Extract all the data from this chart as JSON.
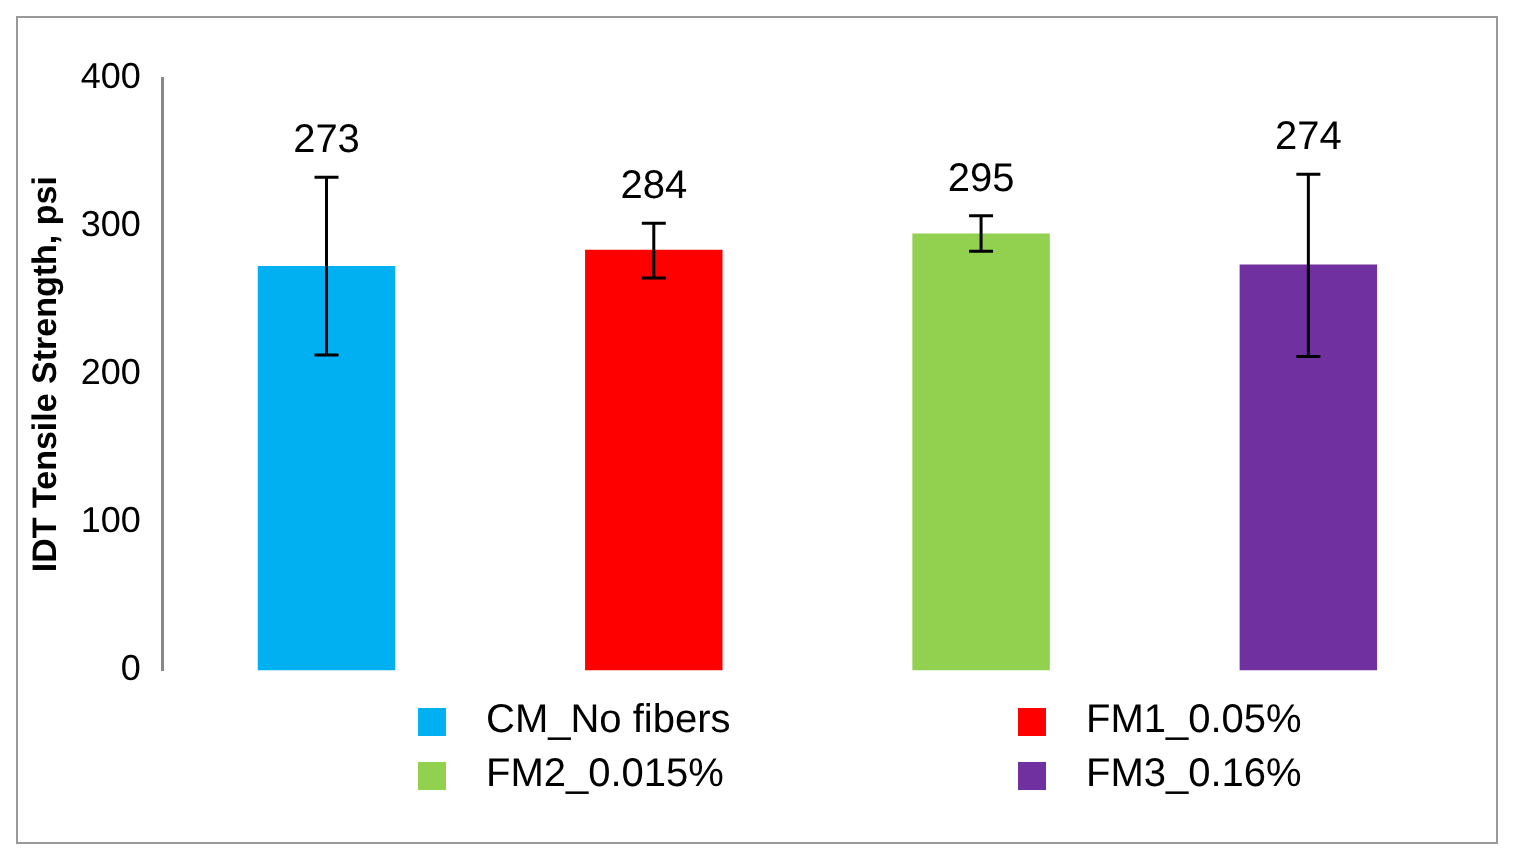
{
  "chart_data": {
    "type": "bar",
    "ylabel": "IDT Tensile Strength, psi",
    "categories": [
      null,
      null,
      null,
      null
    ],
    "stacked": true,
    "series": [
      {
        "name": "CM_No fibers",
        "color": "#00b0f0",
        "values": [
          273,
          null,
          null,
          null
        ],
        "errors": [
          [
            213,
            333
          ],
          null,
          null,
          null
        ]
      },
      {
        "name": "FM1_0.05%",
        "color": "#ff0000",
        "values": [
          null,
          284,
          null,
          null
        ],
        "errors": [
          null,
          [
            265,
            302
          ],
          null,
          null
        ]
      },
      {
        "name": "FM2_0.015%",
        "color": "#92d050",
        "values": [
          null,
          null,
          295,
          null
        ],
        "errors": [
          null,
          null,
          [
            283,
            307
          ],
          null
        ]
      },
      {
        "name": "FM3_0.16%",
        "color": "#7030a0",
        "values": [
          null,
          null,
          null,
          274
        ],
        "errors": [
          null,
          null,
          null,
          [
            212,
            335
          ]
        ]
      }
    ],
    "ylim": [
      0,
      400
    ],
    "yticks": [
      0,
      100,
      200,
      300,
      400
    ],
    "grid": false,
    "legend": "bottom",
    "data_labels": true
  }
}
